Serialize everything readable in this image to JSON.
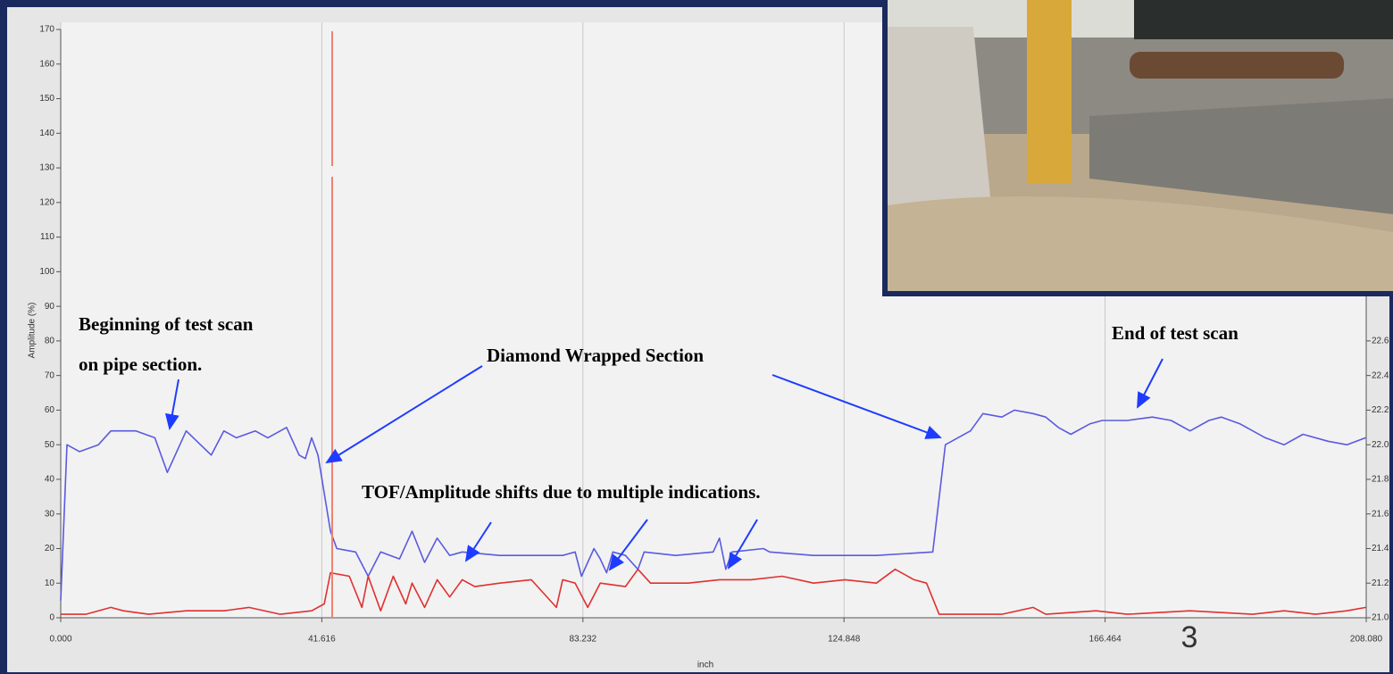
{
  "chart_data": {
    "type": "line",
    "ylabel": "Amplitude (%)",
    "xlabel": "inch",
    "xlim": [
      0,
      208.08
    ],
    "xticks": [
      {
        "value": 0,
        "label": "0.000"
      },
      41.616,
      83.232,
      124.848,
      166.464,
      {
        "value": 208.08,
        "label": "208.080"
      }
    ],
    "ylim": [
      0,
      170
    ],
    "yticks": [
      0,
      10,
      20,
      30,
      40,
      50,
      60,
      70,
      80,
      90,
      100,
      110,
      120,
      130,
      140,
      150,
      160,
      170
    ],
    "y2lim": [
      21.0,
      24.4
    ],
    "y2ticks": [
      {
        "value": 21,
        "label": "21.0"
      },
      21.2,
      21.4,
      21.6,
      21.8,
      {
        "value": 22,
        "label": "22.0"
      },
      22.2,
      22.4,
      22.6
    ],
    "grid": true,
    "series": [
      {
        "color": "#5a5ae0",
        "x": [
          0,
          1,
          3,
          6,
          8,
          12,
          15,
          17,
          20,
          24,
          26,
          28,
          31,
          33,
          36,
          38,
          39,
          40,
          41,
          43,
          44,
          47,
          49,
          51,
          54,
          56,
          58,
          60,
          62,
          64,
          70,
          80,
          82,
          83,
          85,
          86,
          87,
          88,
          90,
          92,
          93,
          98,
          104,
          105,
          106,
          107,
          112,
          113,
          120,
          130,
          139,
          141,
          143,
          145,
          147,
          150,
          152,
          155,
          157,
          159,
          161,
          164,
          166,
          170,
          174,
          177,
          180,
          183,
          185,
          188,
          192,
          195,
          198,
          202,
          205,
          208
        ],
        "values": [
          5,
          50,
          48,
          50,
          54,
          54,
          52,
          42,
          54,
          47,
          54,
          52,
          54,
          52,
          55,
          47,
          46,
          52,
          47,
          25,
          20,
          19,
          12,
          19,
          17,
          25,
          16,
          23,
          18,
          19,
          18,
          18,
          19,
          12,
          20,
          17,
          13,
          19,
          18,
          14,
          19,
          18,
          19,
          23,
          14,
          19,
          20,
          19,
          18,
          18,
          19,
          50,
          52,
          54,
          59,
          58,
          60,
          59,
          58,
          55,
          53,
          56,
          57,
          57,
          58,
          57,
          54,
          57,
          58,
          56,
          52,
          50,
          53,
          51,
          50,
          52
        ]
      },
      {
        "color": "#e03030",
        "x": [
          0,
          4,
          8,
          10,
          14,
          20,
          26,
          30,
          35,
          40,
          42,
          43,
          46,
          48,
          49,
          51,
          53,
          55,
          56,
          58,
          60,
          62,
          64,
          66,
          70,
          75,
          79,
          80,
          82,
          84,
          86,
          90,
          92,
          94,
          100,
          105,
          110,
          115,
          120,
          125,
          130,
          133,
          136,
          138,
          140,
          145,
          150,
          155,
          157,
          165,
          170,
          180,
          190,
          195,
          200,
          205,
          208
        ],
        "values": [
          1,
          1,
          3,
          2,
          1,
          2,
          2,
          3,
          1,
          2,
          4,
          13,
          12,
          3,
          12,
          2,
          12,
          4,
          10,
          3,
          11,
          6,
          11,
          9,
          10,
          11,
          3,
          11,
          10,
          3,
          10,
          9,
          14,
          10,
          10,
          11,
          11,
          12,
          10,
          11,
          10,
          14,
          11,
          10,
          1,
          1,
          1,
          3,
          1,
          2,
          1,
          2,
          1,
          2,
          1,
          2,
          3
        ]
      }
    ]
  },
  "annotations": [
    "Beginning of test scan",
    "on pipe section.",
    "Diamond Wrapped Section",
    "TOF/Amplitude shifts due to multiple indications.",
    "End of test scan"
  ],
  "page_number": "3"
}
